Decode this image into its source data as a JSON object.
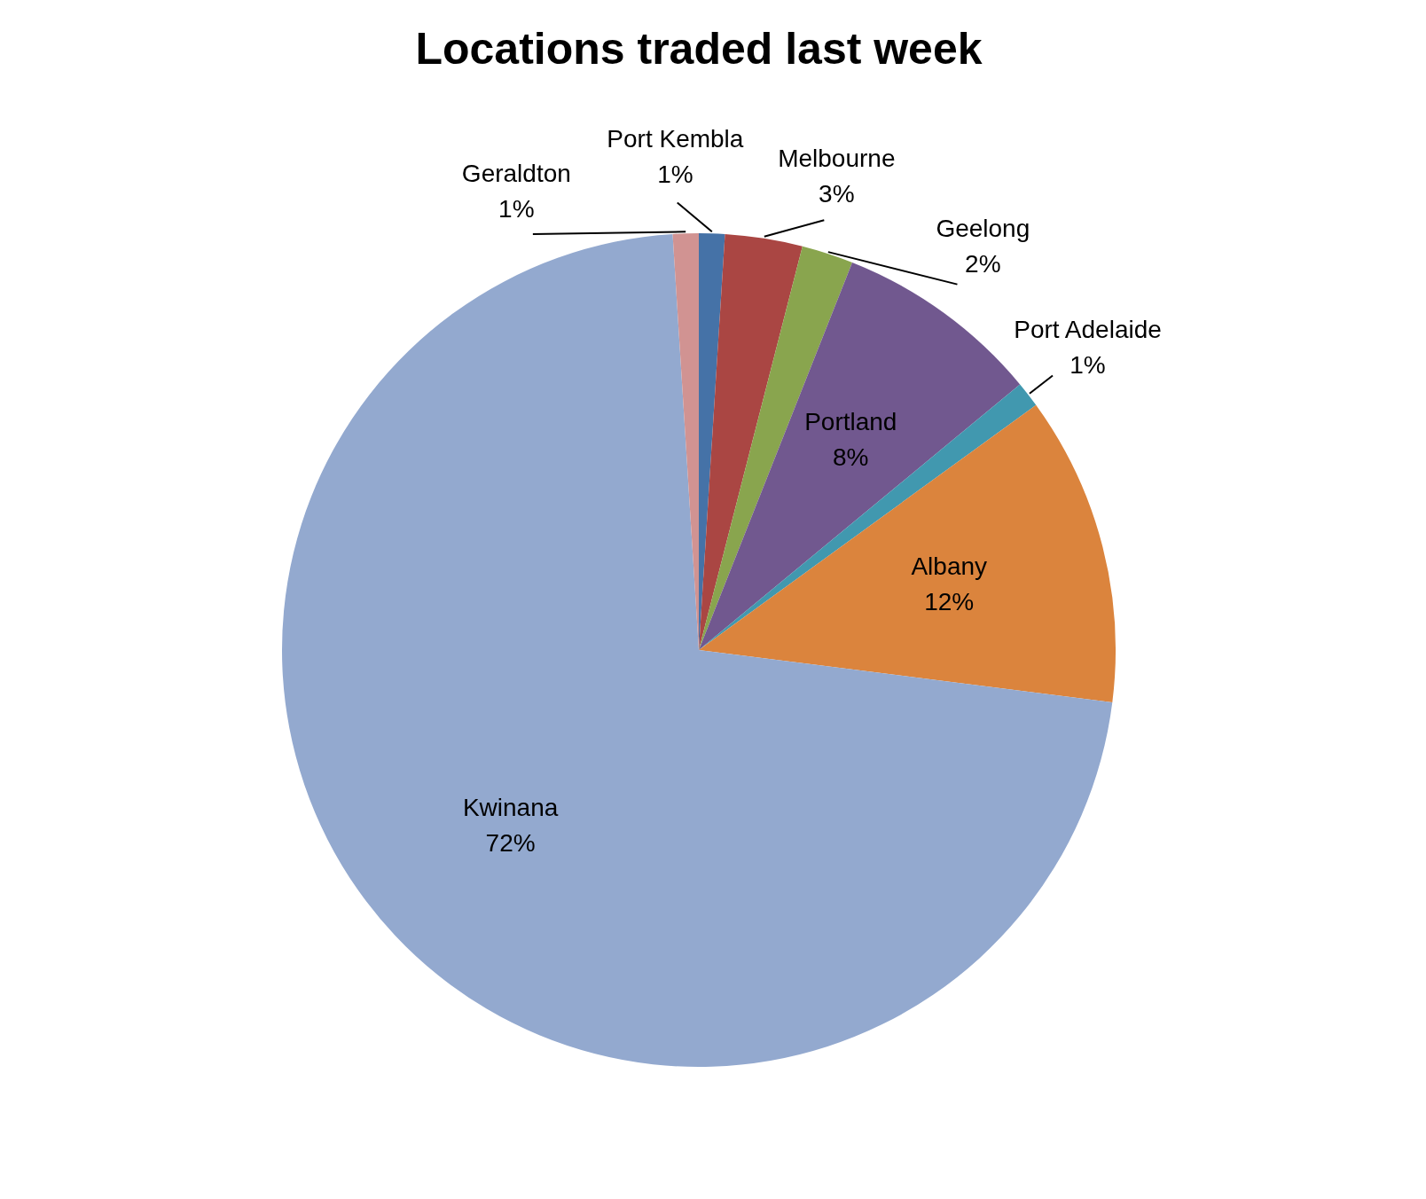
{
  "chart_data": {
    "type": "pie",
    "title": "Locations traded last week",
    "categories": [
      "Port Kembla",
      "Melbourne",
      "Geelong",
      "Portland",
      "Port Adelaide",
      "Albany",
      "Kwinana",
      "Geraldton"
    ],
    "values": [
      1,
      3,
      2,
      8,
      1,
      12,
      72,
      1
    ],
    "value_labels": [
      "1%",
      "3%",
      "2%",
      "8%",
      "1%",
      "12%",
      "72%",
      "1%"
    ],
    "colors": [
      "#4572a7",
      "#aa4643",
      "#89a54e",
      "#71588f",
      "#4198af",
      "#db843d",
      "#93a9cf",
      "#d19392"
    ],
    "legend": false
  }
}
